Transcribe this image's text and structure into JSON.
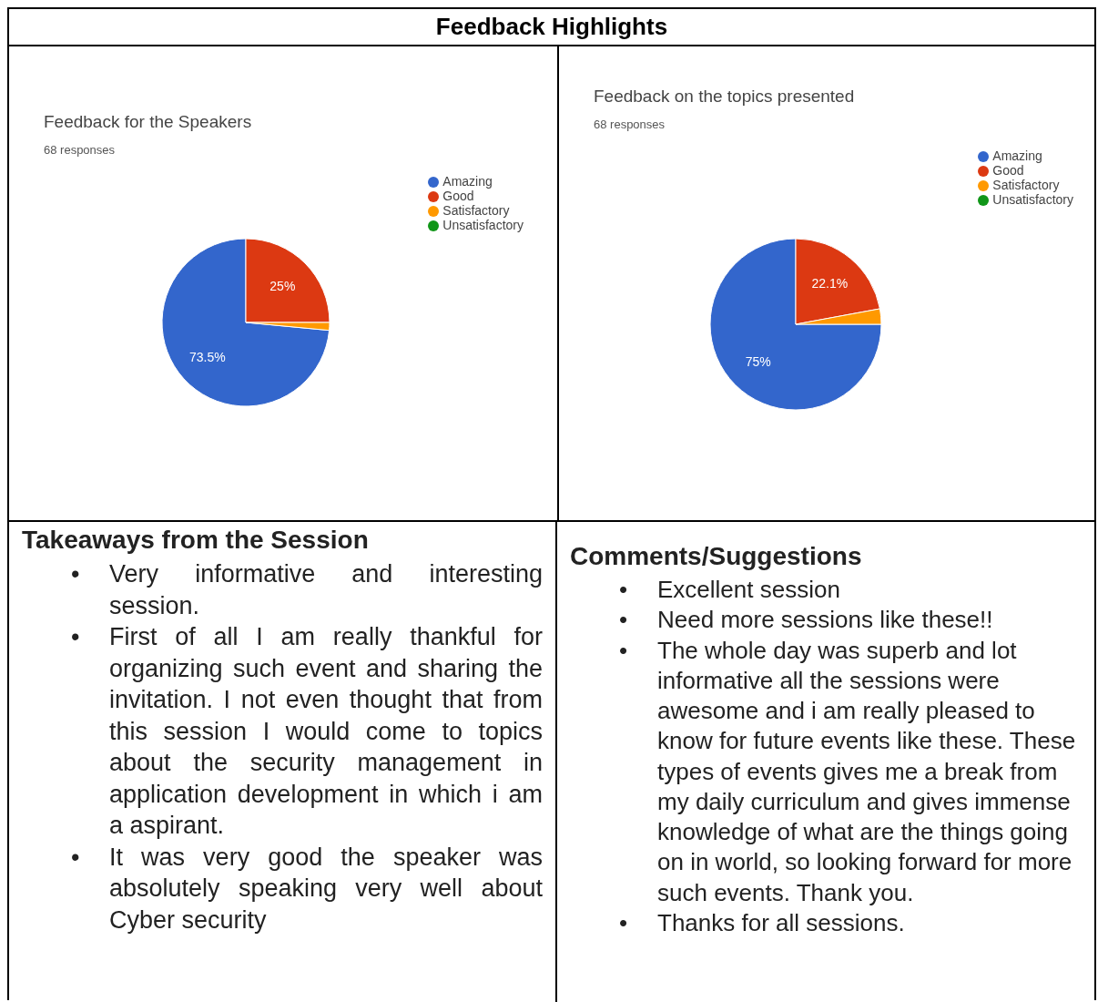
{
  "chart_data": [
    {
      "type": "other",
      "title": "Feedback Highlights"
    },
    {
      "type": "pie",
      "title": "Feedback for the Speakers",
      "subtitle": "68 responses",
      "categories": [
        "Amazing",
        "Good",
        "Satisfactory",
        "Unsatisfactory"
      ],
      "values": [
        73.5,
        25,
        1.5,
        0
      ],
      "colors": [
        "#3366cc",
        "#dc3912",
        "#ff9900",
        "#109618"
      ],
      "value_labels": [
        "73.5%",
        "25%",
        null,
        null
      ],
      "legend": "right"
    },
    {
      "type": "pie",
      "title": "Feedback on the topics presented",
      "subtitle": "68 responses",
      "categories": [
        "Amazing",
        "Good",
        "Satisfactory",
        "Unsatisfactory"
      ],
      "values": [
        75,
        22.1,
        2.9,
        0
      ],
      "colors": [
        "#3366cc",
        "#dc3912",
        "#ff9900",
        "#109618"
      ],
      "value_labels": [
        "75%",
        "22.1%",
        null,
        null
      ],
      "legend": "right"
    },
    {
      "type": "other",
      "title": "Takeaways from the Session",
      "annotations": [
        "• Very informative and interesting session.",
        "• First of all I am really thankful for organizing such event and sharing the invitation. I not even thought that from this session I would come to topics about the security management in application development in which i am a aspirant.",
        "• It was very good the speaker was absolutely speaking very well about Cyber security"
      ]
    },
    {
      "type": "other",
      "title": "Comments/Suggestions",
      "annotations": [
        "• Excellent session",
        "• Need more sessions like these!!",
        "• The whole day was superb and lot informative all the sessions were awesome and i am really pleased to know for future events like these. These types of events gives me a break from my daily curriculum and gives immense knowledge of what are the things going on in world, so looking forward for more such events. Thank you.",
        "• Thanks for all sessions."
      ]
    }
  ]
}
